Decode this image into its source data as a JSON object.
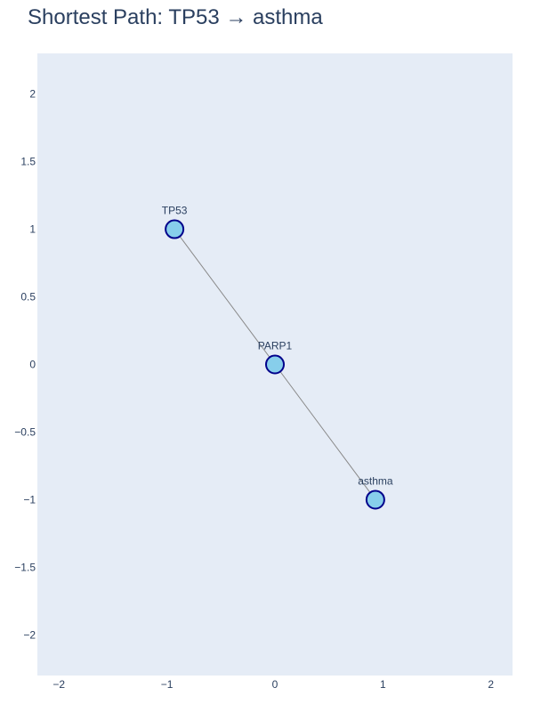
{
  "chart_data": {
    "type": "scatter",
    "title": "Shortest Path: TP53 → asthma",
    "xlabel": "",
    "ylabel": "",
    "xlim": [
      -2.2,
      2.2
    ],
    "ylim": [
      -2.3,
      2.3
    ],
    "x_ticks": [
      -2,
      -1,
      0,
      1,
      2
    ],
    "x_tick_labels": [
      "−2",
      "−1",
      "0",
      "1",
      "2"
    ],
    "y_ticks": [
      2,
      1.5,
      1,
      0.5,
      0,
      -0.5,
      -1,
      -1.5,
      -2
    ],
    "y_tick_labels": [
      "2",
      "1.5",
      "1",
      "0.5",
      "0",
      "−0.5",
      "−1",
      "−1.5",
      "−2"
    ],
    "grid": false,
    "legend": "none",
    "nodes": [
      {
        "label": "TP53",
        "x": -0.93,
        "y": 1.0
      },
      {
        "label": "PARP1",
        "x": 0.0,
        "y": 0.0
      },
      {
        "label": "asthma",
        "x": 0.93,
        "y": -1.0
      }
    ],
    "edges": [
      [
        0,
        1
      ],
      [
        1,
        2
      ]
    ],
    "colors": {
      "plot_bg": "#e5ecf6",
      "node_fill": "#87ceeb",
      "node_stroke": "#00008b",
      "edge": "#888888",
      "text": "#2a3f5f"
    }
  }
}
